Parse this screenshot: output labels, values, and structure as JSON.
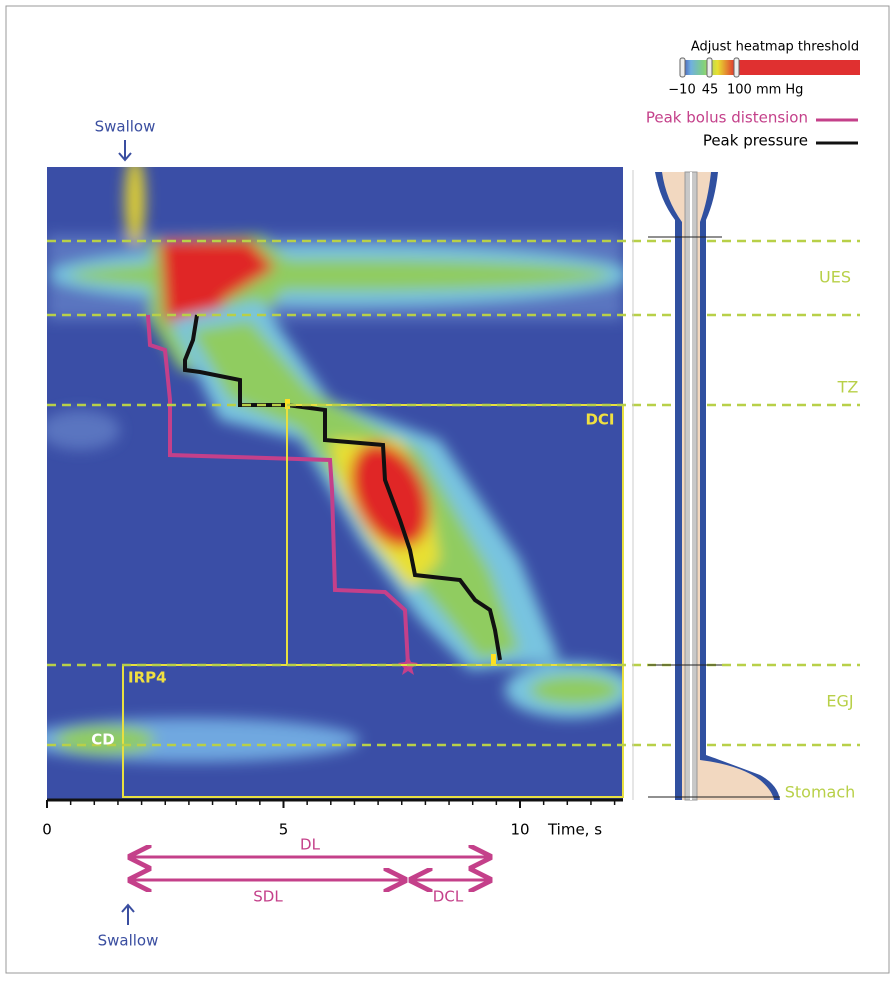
{
  "legend": {
    "title": "Adjust heatmap threshold",
    "scale_labels": [
      "−10",
      "45",
      "100 mm Hg"
    ],
    "peak_bolus": "Peak bolus distension",
    "peak_pressure": "Peak pressure"
  },
  "annotations": {
    "swallow_top": "Swallow",
    "swallow_bottom": "Swallow",
    "dci": "DCI",
    "irp4": "IRP4",
    "cd": "CD"
  },
  "regions": [
    "UES",
    "TZ",
    "EGJ",
    "Stomach"
  ],
  "x_axis": {
    "ticks": [
      0,
      5,
      10
    ],
    "label": "Time, s"
  },
  "intervals": {
    "dl": "DL",
    "sdl": "SDL",
    "dcl": "DCL"
  }
}
